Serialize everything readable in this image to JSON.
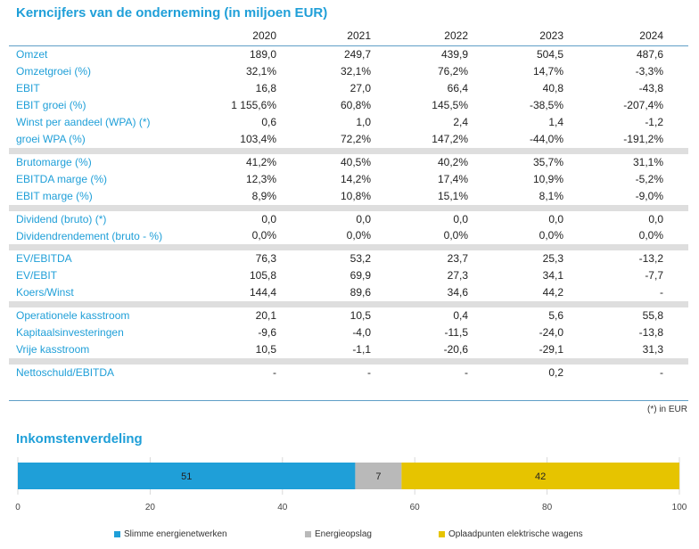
{
  "title": "Kerncijfers van de onderneming (in miljoen EUR)",
  "years": [
    "2020",
    "2021",
    "2022",
    "2023",
    "2024"
  ],
  "groups": [
    [
      {
        "label": "Omzet",
        "values": [
          "189,0",
          "249,7",
          "439,9",
          "504,5",
          "487,6"
        ]
      },
      {
        "label": "Omzetgroei (%)",
        "values": [
          "32,1%",
          "32,1%",
          "76,2%",
          "14,7%",
          "-3,3%"
        ]
      },
      {
        "label": "EBIT",
        "values": [
          "16,8",
          "27,0",
          "66,4",
          "40,8",
          "-43,8"
        ]
      },
      {
        "label": "EBIT groei (%)",
        "values": [
          "1 155,6%",
          "60,8%",
          "145,5%",
          "-38,5%",
          "-207,4%"
        ]
      },
      {
        "label": "Winst per aandeel (WPA) (*)",
        "values": [
          "0,6",
          "1,0",
          "2,4",
          "1,4",
          "-1,2"
        ]
      },
      {
        "label": "groei WPA (%)",
        "values": [
          "103,4%",
          "72,2%",
          "147,2%",
          "-44,0%",
          "-191,2%"
        ]
      }
    ],
    [
      {
        "label": "Brutomarge (%)",
        "values": [
          "41,2%",
          "40,5%",
          "40,2%",
          "35,7%",
          "31,1%"
        ]
      },
      {
        "label": "EBITDA marge (%)",
        "values": [
          "12,3%",
          "14,2%",
          "17,4%",
          "10,9%",
          "-5,2%"
        ]
      },
      {
        "label": "EBIT marge (%)",
        "values": [
          "8,9%",
          "10,8%",
          "15,1%",
          "8,1%",
          "-9,0%"
        ]
      }
    ],
    [
      {
        "label": "Dividend (bruto) (*)",
        "values": [
          "0,0",
          "0,0",
          "0,0",
          "0,0",
          "0,0"
        ]
      },
      {
        "label": "Dividendrendement (bruto - %)",
        "values": [
          "0,0%",
          "0,0%",
          "0,0%",
          "0,0%",
          "0,0%"
        ],
        "tall": true
      }
    ],
    [
      {
        "label": "EV/EBITDA",
        "values": [
          "76,3",
          "53,2",
          "23,7",
          "25,3",
          "-13,2"
        ]
      },
      {
        "label": "EV/EBIT",
        "values": [
          "105,8",
          "69,9",
          "27,3",
          "34,1",
          "-7,7"
        ]
      },
      {
        "label": "Koers/Winst",
        "values": [
          "144,4",
          "89,6",
          "34,6",
          "44,2",
          "-"
        ]
      }
    ],
    [
      {
        "label": "Operationele kasstroom",
        "values": [
          "20,1",
          "10,5",
          "0,4",
          "5,6",
          "55,8"
        ]
      },
      {
        "label": "Kapitaalsinvesteringen",
        "values": [
          "-9,6",
          "-4,0",
          "-11,5",
          "-24,0",
          "-13,8"
        ]
      },
      {
        "label": "Vrije kasstroom",
        "values": [
          "10,5",
          "-1,1",
          "-20,6",
          "-29,1",
          "31,3"
        ]
      }
    ],
    [
      {
        "label": "Nettoschuld/EBITDA",
        "values": [
          "-",
          "-",
          "-",
          "0,2",
          "-"
        ]
      }
    ]
  ],
  "footnote": "(*) in EUR",
  "income_title": "Inkomstenverdeling",
  "chart_data": {
    "type": "bar",
    "orientation": "horizontal",
    "stacked": true,
    "title": "Inkomstenverdeling",
    "xlim": [
      0,
      100
    ],
    "xticks": [
      0,
      20,
      40,
      60,
      80,
      100
    ],
    "grid": true,
    "legend_position": "bottom",
    "series": [
      {
        "name": "Slimme energienetwerken",
        "value": 51,
        "color": "#1f9fd8"
      },
      {
        "name": "Energieopslag",
        "value": 7,
        "color": "#b9b9b9"
      },
      {
        "name": "Oplaadpunten elektrische wagens",
        "value": 42,
        "color": "#e6c400"
      }
    ]
  }
}
